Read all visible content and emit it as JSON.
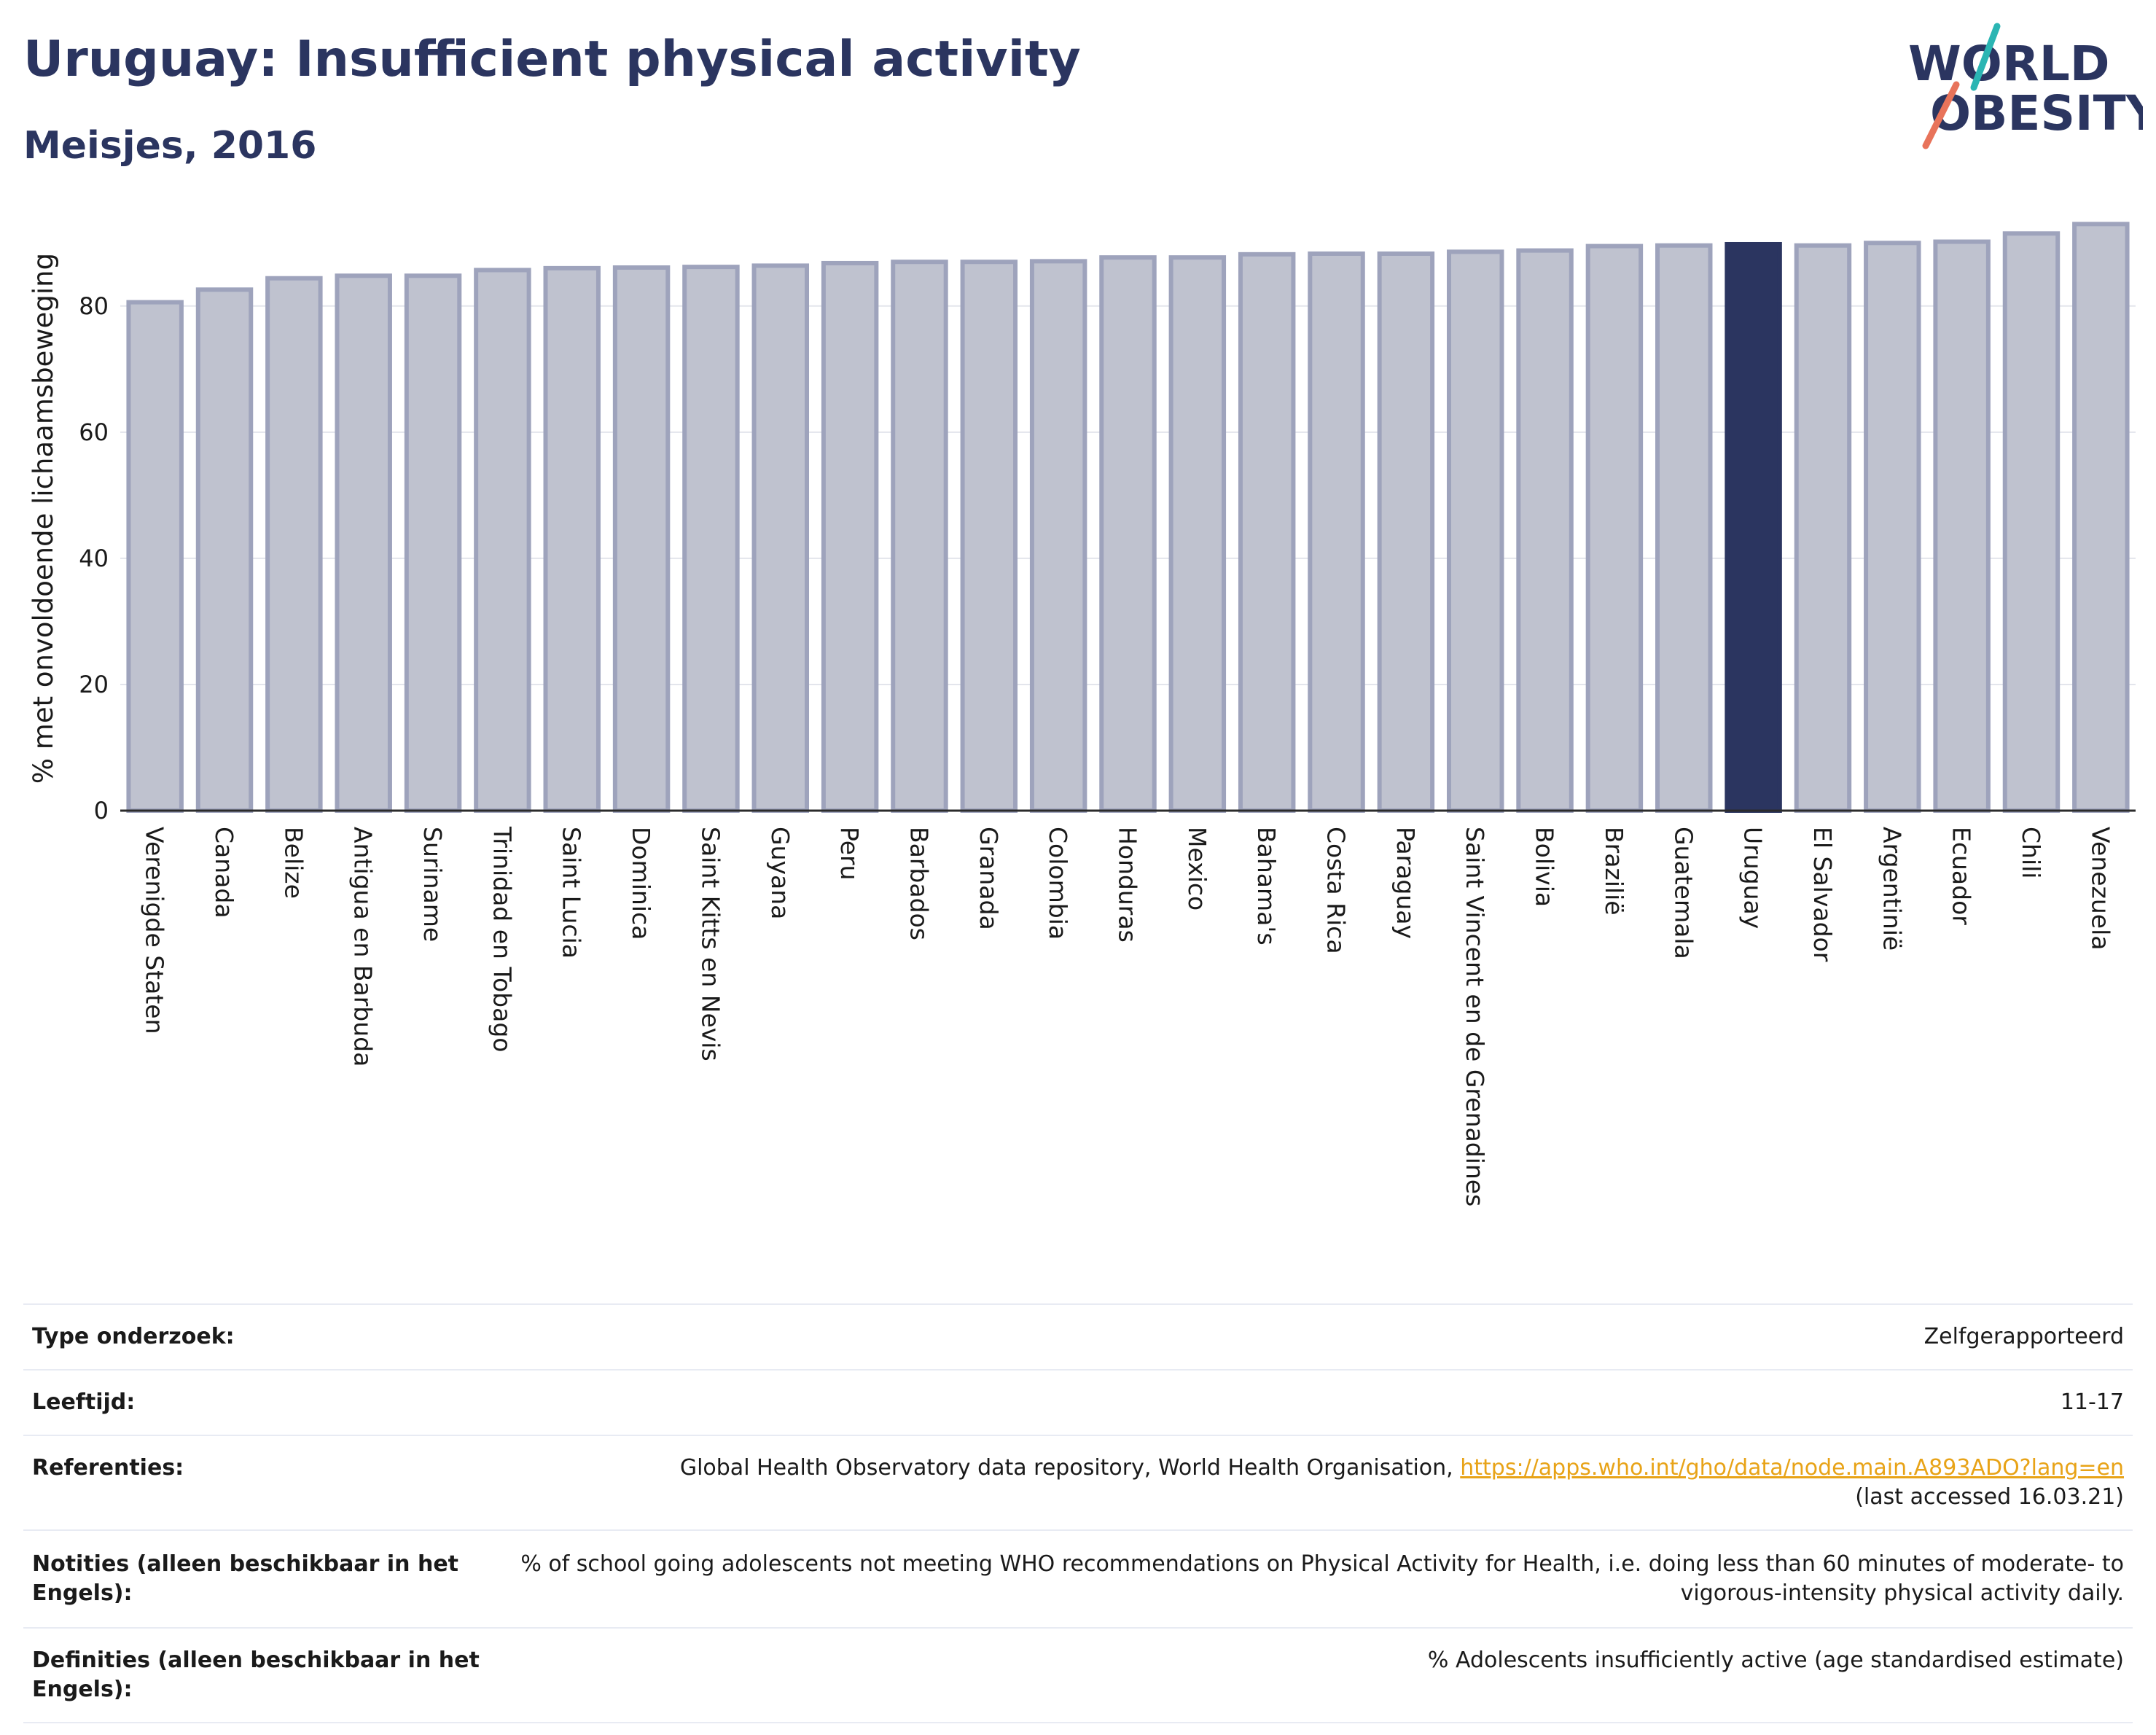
{
  "header": {
    "title": "Uruguay: Insufficient physical activity",
    "subtitle": "Meisjes, 2016",
    "logo_line1": "WORLD",
    "logo_line2": "OBESITY"
  },
  "colors": {
    "title": "#2b3560",
    "bar_default": "#bfc2cf",
    "bar_default_stroke": "#9ea3bc",
    "bar_highlight": "#2b3560",
    "logo_teal": "#2bb5b3",
    "logo_coral": "#e8735a",
    "link": "#e8a317"
  },
  "chart_data": {
    "type": "bar",
    "title": "Uruguay: Insufficient physical activity",
    "subtitle": "Meisjes, 2016",
    "ylabel": "% met onvoldoende lichaamsbeweging",
    "xlabel": "",
    "ylim": [
      0,
      95
    ],
    "yticks": [
      0,
      20,
      40,
      60,
      80
    ],
    "grid": true,
    "highlight": "Uruguay",
    "categories": [
      "Verenigde Staten",
      "Canada",
      "Belize",
      "Antigua en Barbuda",
      "Suriname",
      "Trinidad en Tobago",
      "Saint Lucia",
      "Dominica",
      "Saint Kitts en Nevis",
      "Guyana",
      "Peru",
      "Barbados",
      "Granada",
      "Colombia",
      "Honduras",
      "Mexico",
      "Bahama's",
      "Costa Rica",
      "Paraguay",
      "Saint Vincent en de Grenadines",
      "Bolivia",
      "Brazilië",
      "Guatemala",
      "Uruguay",
      "El Salvador",
      "Argentinië",
      "Ecuador",
      "Chili",
      "Venezuela"
    ],
    "values": [
      80.6,
      82.6,
      84.4,
      84.8,
      84.8,
      85.7,
      86.0,
      86.1,
      86.2,
      86.4,
      86.8,
      87.0,
      87.0,
      87.1,
      87.7,
      87.7,
      88.2,
      88.3,
      88.3,
      88.6,
      88.8,
      89.5,
      89.6,
      89.8,
      89.6,
      90.0,
      90.2,
      91.5,
      93.0
    ]
  },
  "info": {
    "rows": [
      {
        "label": "Type onderzoek:",
        "value": "Zelfgerapporteerd"
      },
      {
        "label": "Leeftijd:",
        "value": "11-17"
      },
      {
        "label": "Referenties:",
        "value": "Global Health Observatory data repository, World Health Organisation,",
        "link": "https://apps.who.int/gho/data/node.main.A893ADO?lang=en",
        "value2": "(last accessed 16.03.21)"
      },
      {
        "label": "Notities (alleen beschikbaar in het Engels):",
        "value": "% of school going adolescents not meeting WHO recommendations on Physical Activity for Health, i.e. doing less than 60 minutes of moderate- to vigorous-intensity physical activity daily."
      },
      {
        "label": "Definities (alleen beschikbaar in het Engels):",
        "value": "% Adolescents insufficiently active (age standardised estimate)"
      }
    ]
  }
}
